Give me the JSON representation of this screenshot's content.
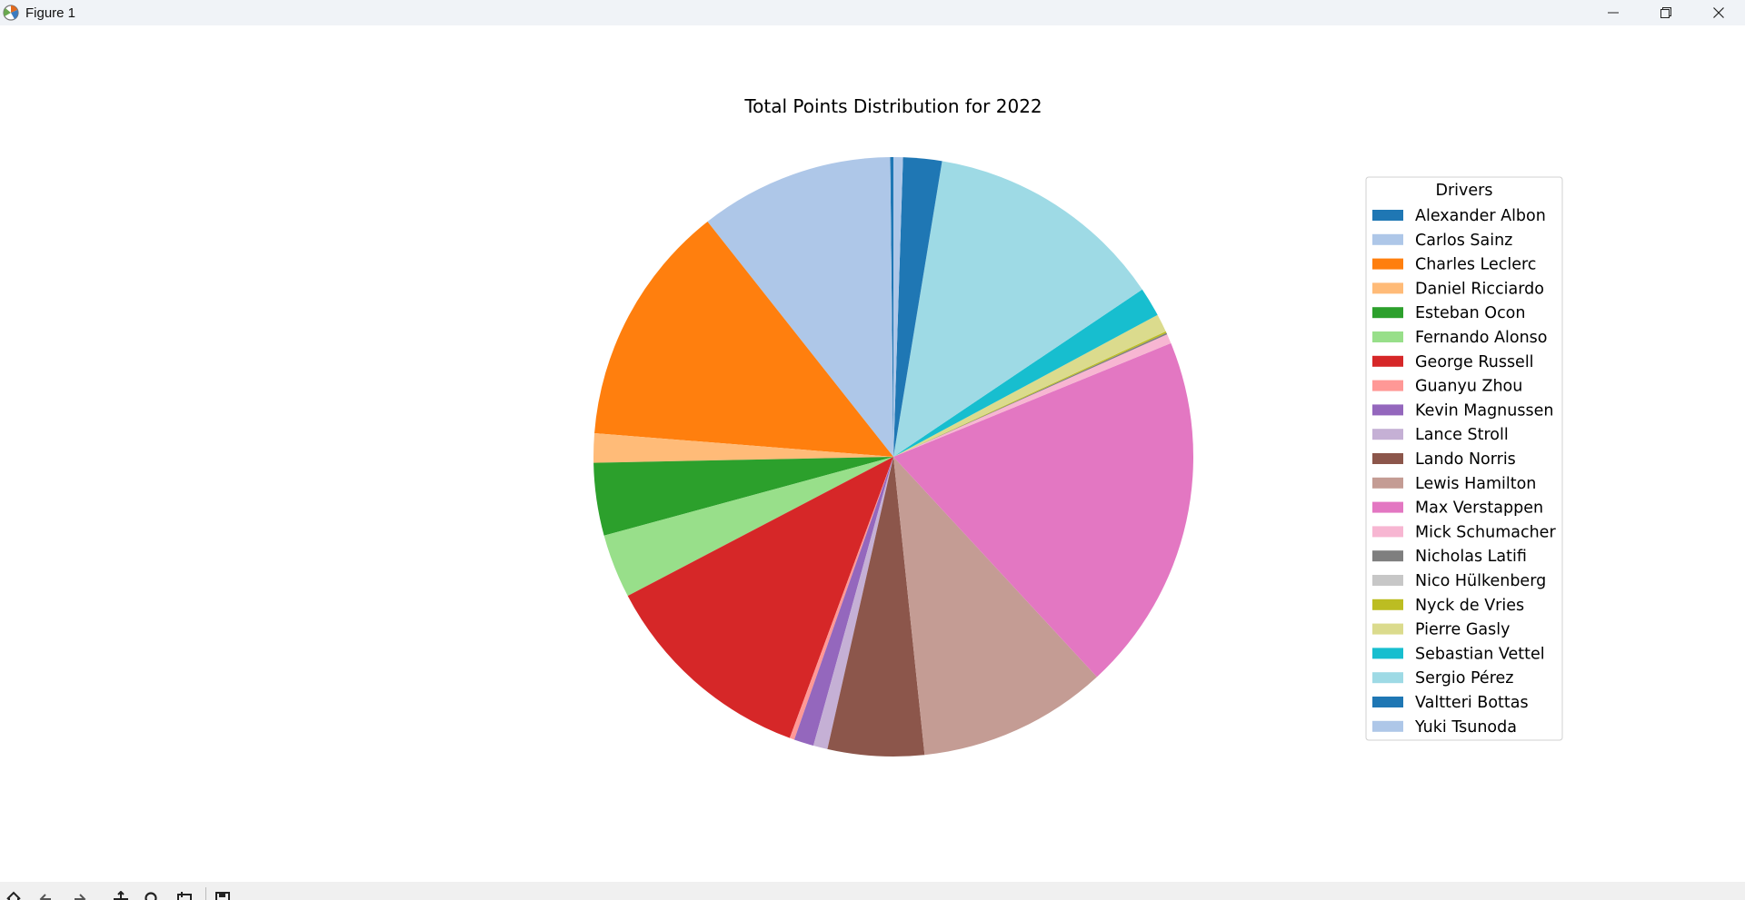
{
  "window": {
    "title": "Figure 1"
  },
  "icons": {
    "app": "matplotlib-figure-icon",
    "minimize": "minimize-icon",
    "maximize": "restore-icon",
    "close": "close-icon",
    "toolbar": [
      "home-icon",
      "back-icon",
      "forward-icon",
      "pan-icon",
      "zoom-icon",
      "configure-subplots-icon",
      "save-icon"
    ]
  },
  "chart_data": {
    "type": "pie",
    "title": "Total Points Distribution for 2022",
    "legend_title": "Drivers",
    "legend_position": "right",
    "start_angle_deg": 90,
    "direction": "counterclockwise",
    "slices": [
      {
        "label": "Alexander Albon",
        "value": 4,
        "color": "#1f77b4"
      },
      {
        "label": "Carlos Sainz",
        "value": 246,
        "color": "#aec7e8"
      },
      {
        "label": "Charles Leclerc",
        "value": 308,
        "color": "#ff7f0e"
      },
      {
        "label": "Daniel Ricciardo",
        "value": 37,
        "color": "#ffbb78"
      },
      {
        "label": "Esteban Ocon",
        "value": 92,
        "color": "#2ca02c"
      },
      {
        "label": "Fernando Alonso",
        "value": 81,
        "color": "#98df8a"
      },
      {
        "label": "George Russell",
        "value": 275,
        "color": "#d62728"
      },
      {
        "label": "Guanyu Zhou",
        "value": 6,
        "color": "#ff9896"
      },
      {
        "label": "Kevin Magnussen",
        "value": 25,
        "color": "#9467bd"
      },
      {
        "label": "Lance Stroll",
        "value": 18,
        "color": "#c5b0d5"
      },
      {
        "label": "Lando Norris",
        "value": 122,
        "color": "#8c564b"
      },
      {
        "label": "Lewis Hamilton",
        "value": 240,
        "color": "#c49c94"
      },
      {
        "label": "Max Verstappen",
        "value": 454,
        "color": "#e377c2"
      },
      {
        "label": "Mick Schumacher",
        "value": 12,
        "color": "#f7b6d2"
      },
      {
        "label": "Nicholas Latifi",
        "value": 2,
        "color": "#7f7f7f"
      },
      {
        "label": "Nico Hülkenberg",
        "value": 0,
        "color": "#c7c7c7"
      },
      {
        "label": "Nyck de Vries",
        "value": 2,
        "color": "#bcbd22"
      },
      {
        "label": "Pierre Gasly",
        "value": 23,
        "color": "#dbdb8d"
      },
      {
        "label": "Sebastian Vettel",
        "value": 37,
        "color": "#17becf"
      },
      {
        "label": "Sergio Pérez",
        "value": 305,
        "color": "#9edae5"
      },
      {
        "label": "Valtteri Bottas",
        "value": 49,
        "color": "#1f77b4"
      },
      {
        "label": "Yuki Tsunoda",
        "value": 12,
        "color": "#aec7e8"
      }
    ]
  }
}
